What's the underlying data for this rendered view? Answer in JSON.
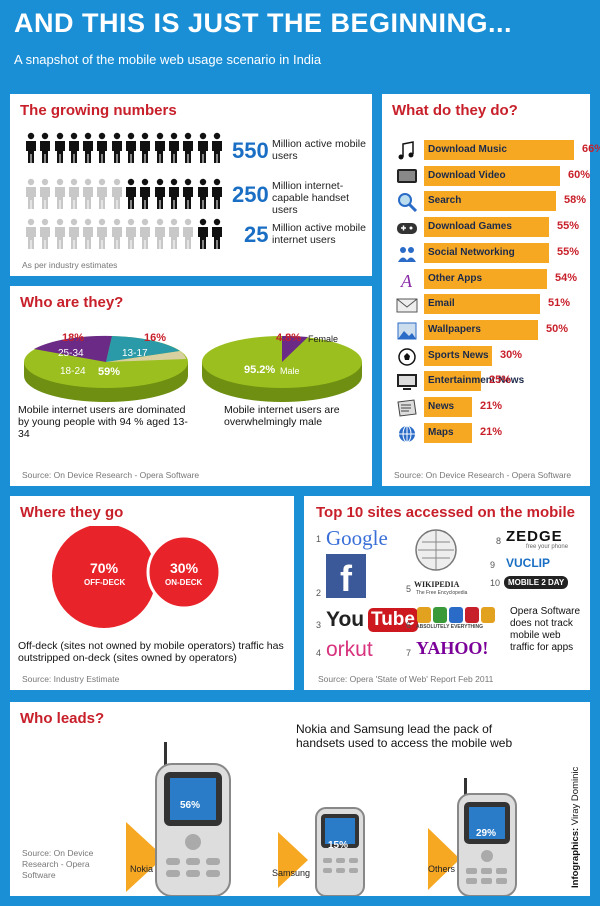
{
  "header": {
    "title": "AND THIS IS JUST THE BEGINNING...",
    "subtitle": "A snapshot of the mobile web usage scenario in India"
  },
  "growing": {
    "title": "The growing numbers",
    "rows": [
      {
        "number": "550",
        "text": "Million active mobile users",
        "filled": 14
      },
      {
        "number": "250",
        "text": "Million internet-capable handset users",
        "filled": 7
      },
      {
        "number": "25",
        "text": "Million active mobile internet users",
        "filled": 2
      }
    ],
    "note": "As per industry estimates",
    "colors": {
      "filled": "#111111",
      "empty": "#c8c8c8",
      "number": "#1a6fc4"
    }
  },
  "what": {
    "title": "What do they do?",
    "items": [
      {
        "label": "Download Music",
        "value": 66,
        "pct": "66%",
        "icon": "music-note-icon"
      },
      {
        "label": "Download Video",
        "value": 60,
        "pct": "60%",
        "icon": "tv-icon"
      },
      {
        "label": "Search",
        "value": 58,
        "pct": "58%",
        "icon": "magnifier-icon"
      },
      {
        "label": "Download Games",
        "value": 55,
        "pct": "55%",
        "icon": "gamepad-icon"
      },
      {
        "label": "Social Networking",
        "value": 55,
        "pct": "55%",
        "icon": "people-icon"
      },
      {
        "label": "Other Apps",
        "value": 54,
        "pct": "54%",
        "icon": "letter-a-icon"
      },
      {
        "label": "Email",
        "value": 51,
        "pct": "51%",
        "icon": "envelope-icon"
      },
      {
        "label": "Wallpapers",
        "value": 50,
        "pct": "50%",
        "icon": "wallpaper-icon"
      },
      {
        "label": "Sports News",
        "value": 30,
        "pct": "30%",
        "icon": "football-icon"
      },
      {
        "label": "Entertainment News",
        "value": 25,
        "pct": "25%",
        "icon": "monitor-icon"
      },
      {
        "label": "News",
        "value": 21,
        "pct": "21%",
        "icon": "newspaper-icon"
      },
      {
        "label": "Maps",
        "value": 21,
        "pct": "21%",
        "icon": "globe-icon"
      }
    ],
    "source": "Source: On Device Research - Opera Software",
    "bar_color": "#f7a823"
  },
  "who": {
    "title": "Who are they?",
    "age_labels": {
      "a": "18%",
      "b": "16%",
      "c": "25-34",
      "d": "13-17",
      "e": "18-24",
      "f": "59%"
    },
    "gender_labels": {
      "female_pct": "4.8%",
      "female": "Female",
      "male_pct": "95.2%",
      "male": "Male"
    },
    "desc_age": "Mobile internet users are dominated by young people with 94 % aged 13-34",
    "desc_gender": "Mobile internet users are overwhelmingly male",
    "source": "Source: On Device Research - Opera Software",
    "colors": {
      "green": "#9bbf1e",
      "purple": "#6a2a86",
      "teal": "#2a9aa8"
    }
  },
  "where": {
    "title": "Where they go",
    "off_pct": "70%",
    "off_label": "OFF-DECK",
    "on_pct": "30%",
    "on_label": "ON-DECK",
    "desc": "Off-deck (sites not owned by mobile operators) traffic has outstripped on-deck (sites owned by operators)",
    "source": "Source: Industry Estimate",
    "color": "#e8232a"
  },
  "top10": {
    "title": "Top 10 sites accessed on the mobile",
    "ranks": [
      "1",
      "2",
      "3",
      "4",
      "5",
      "6",
      "7",
      "8",
      "9",
      "10"
    ],
    "sites": {
      "google": "Google",
      "facebook": "f",
      "youtube_you": "You",
      "youtube_tube": "Tube",
      "orkut": "orkut",
      "wikipedia": "WIKIPEDIA",
      "wikipedia_sub": "The Free Encyclopedia",
      "getjar_tag": "ABSOLUTELY EVERYTHING",
      "yahoo": "YAHOO!",
      "zedge": "ZEDGE",
      "zedge_sub": "free your phone",
      "vuclip": "VUCLIP",
      "mobile2day": "MOBILE 2 DAY"
    },
    "note": "Opera Software does not track mobile web traffic for apps",
    "source": "Source: Opera 'State of Web' Report Feb 2011"
  },
  "leads": {
    "title": "Who leads?",
    "headline": "Nokia and Samsung lead the pack of handsets used to access the mobile web",
    "phones": [
      {
        "brand": "Nokia",
        "pct": "56%"
      },
      {
        "brand": "Samsung",
        "pct": "15%"
      },
      {
        "brand": "Others",
        "pct": "29%"
      }
    ],
    "source": "Source: On Device Research - Opera Software",
    "credit_label": "Infographics:",
    "credit_name": "Viray Dominic"
  }
}
